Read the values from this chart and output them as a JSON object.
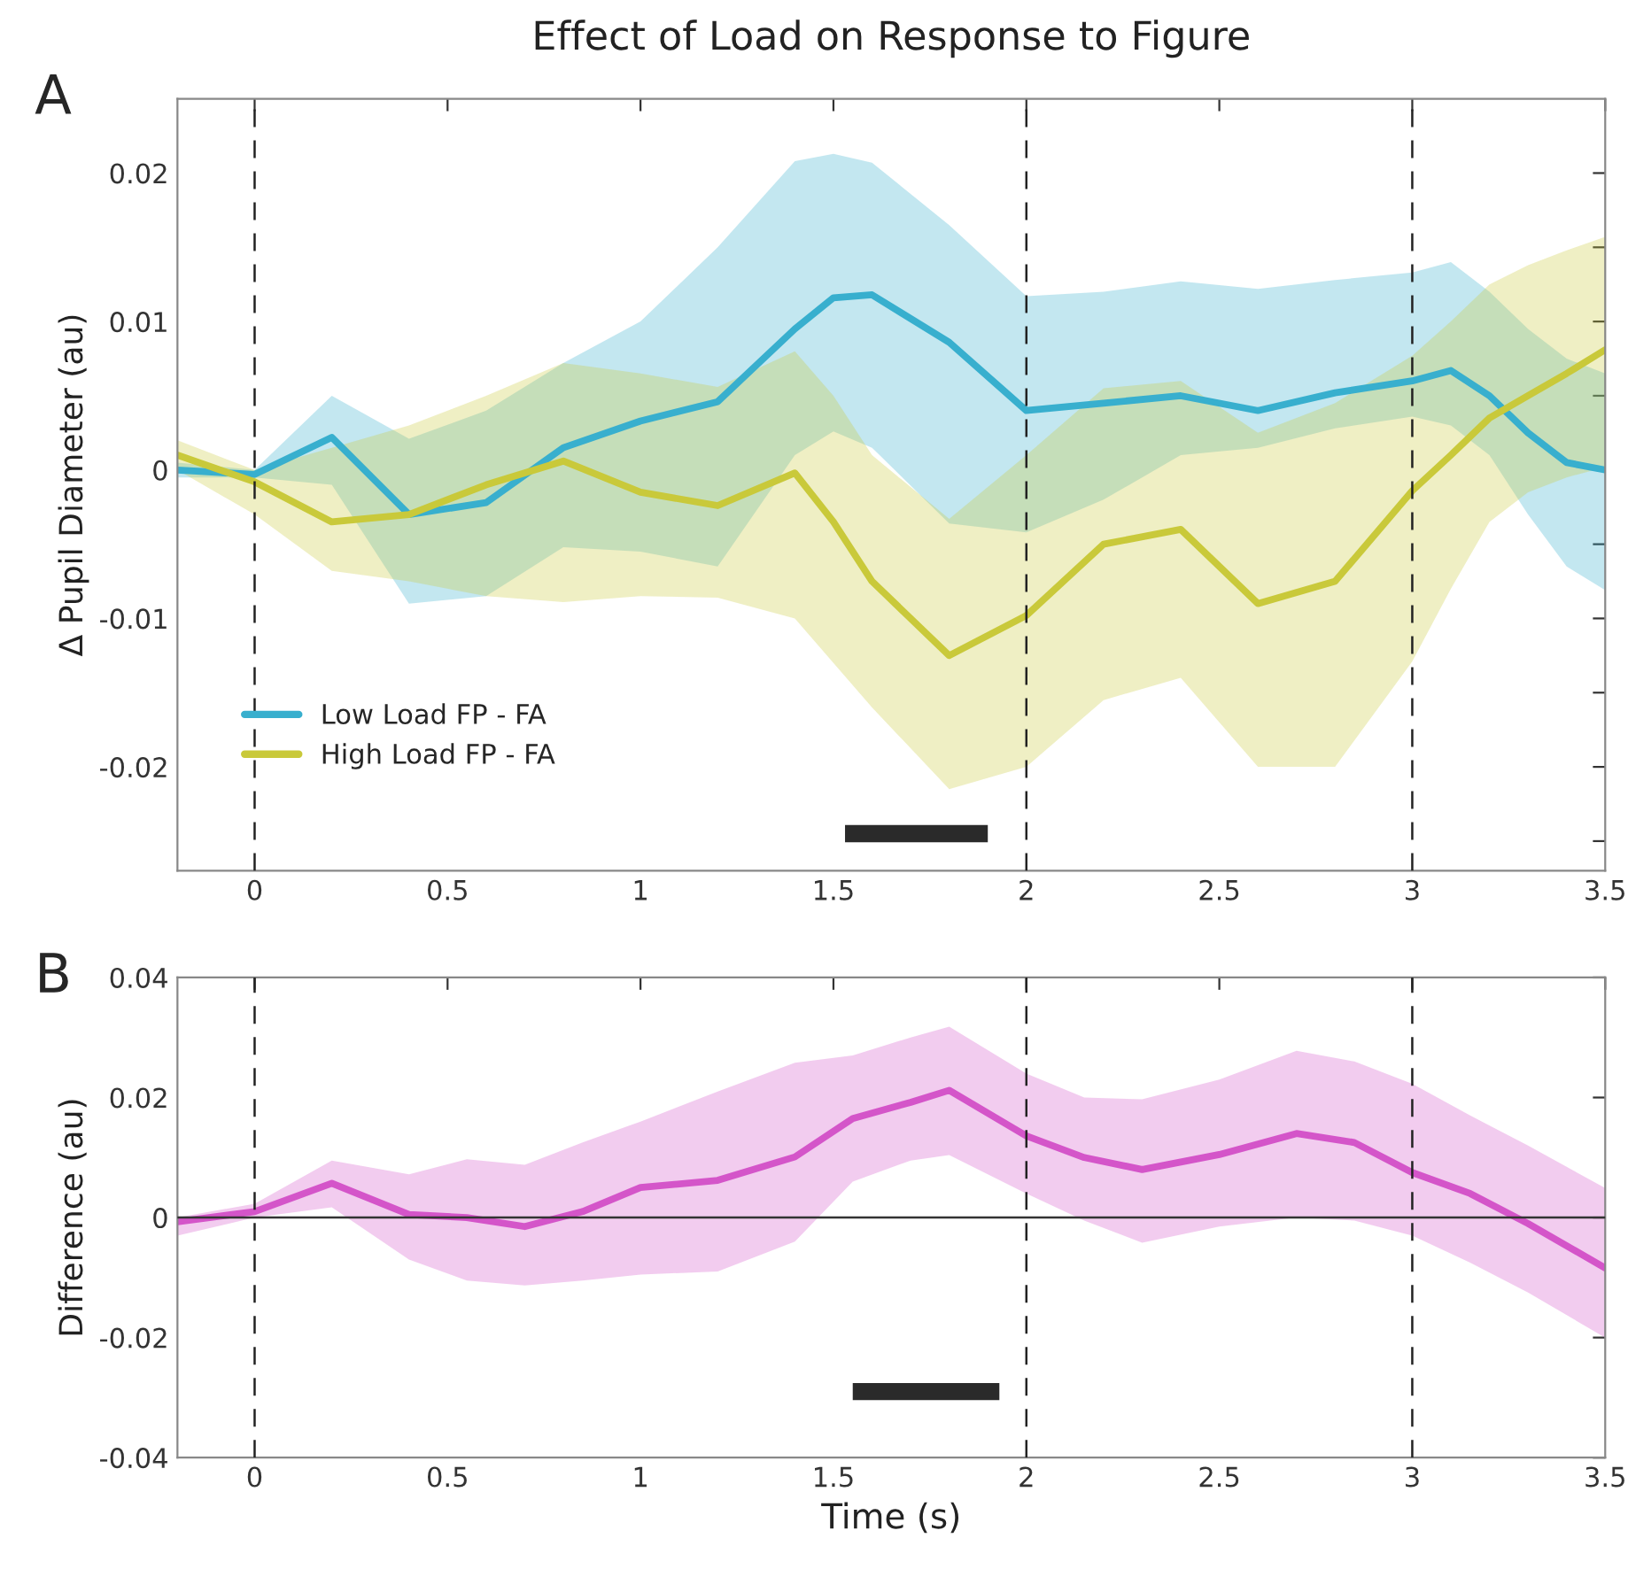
{
  "chart_data": [
    {
      "type": "line",
      "title": "Effect of Load on Response to Figure",
      "ylabel": "Δ Pupil Diameter (au)",
      "annotations": [
        "A"
      ],
      "xlim": [
        -0.2,
        3.5
      ],
      "xticks": [
        0,
        0.5,
        1,
        1.5,
        2,
        2.5,
        3,
        3.5
      ],
      "ylim": [
        -0.027,
        0.025
      ],
      "yticks": [
        {
          "value": -0.025,
          "label": null
        },
        -0.02,
        {
          "value": -0.015,
          "label": null
        },
        -0.01,
        {
          "value": -0.005,
          "label": null
        },
        0,
        {
          "value": 0.005,
          "label": null
        },
        0.01,
        {
          "value": 0.015,
          "label": null
        },
        0.02
      ],
      "grid": false,
      "legend": "bottom left",
      "ref_lines": [
        {
          "axis": "x",
          "value": 0,
          "color": "#222222",
          "line_style": "dashed"
        },
        {
          "axis": "x",
          "value": 2,
          "color": "#222222",
          "line_style": "dashed"
        },
        {
          "axis": "x",
          "value": 3,
          "color": "#222222",
          "line_style": "dashed"
        }
      ],
      "series": [
        {
          "name": "Low Load FP - FA",
          "color": "#38afce",
          "x": [
            -0.2,
            0,
            0.2,
            0.4,
            0.6,
            0.8,
            1.0,
            1.2,
            1.4,
            1.5,
            1.6,
            1.8,
            2.0,
            2.2,
            2.4,
            2.6,
            2.8,
            3.0,
            3.1,
            3.2,
            3.3,
            3.4,
            3.5
          ],
          "values": [
            0.0,
            -0.0003,
            0.0022,
            -0.003,
            -0.0022,
            0.0015,
            0.0033,
            0.0046,
            0.0095,
            0.0116,
            0.0118,
            0.0086,
            0.004,
            0.0045,
            0.005,
            0.004,
            0.0052,
            0.006,
            0.0067,
            0.005,
            0.0025,
            0.0005,
            0.0
          ],
          "upper": [
            0.0005,
            0.0,
            0.005,
            0.0021,
            0.004,
            0.0072,
            0.01,
            0.015,
            0.0208,
            0.0213,
            0.0207,
            0.0165,
            0.0117,
            0.012,
            0.0127,
            0.0122,
            0.0128,
            0.0133,
            0.014,
            0.012,
            0.0095,
            0.0075,
            0.0065
          ],
          "lower": [
            -0.0005,
            -0.0005,
            -0.001,
            -0.009,
            -0.0085,
            -0.0052,
            -0.0055,
            -0.0065,
            0.001,
            0.0026,
            0.0015,
            -0.0036,
            -0.0042,
            -0.002,
            0.001,
            0.0015,
            0.0028,
            0.0036,
            0.003,
            0.001,
            -0.003,
            -0.0065,
            -0.0081
          ]
        },
        {
          "name": "High Load FP - FA",
          "color": "#c9c93a",
          "x": [
            -0.2,
            0,
            0.2,
            0.4,
            0.6,
            0.8,
            1.0,
            1.2,
            1.4,
            1.5,
            1.6,
            1.8,
            2.0,
            2.2,
            2.4,
            2.6,
            2.8,
            3.0,
            3.1,
            3.2,
            3.3,
            3.4,
            3.5
          ],
          "values": [
            0.001,
            -0.0008,
            -0.0035,
            -0.003,
            -0.001,
            0.0006,
            -0.0015,
            -0.0024,
            -0.0002,
            -0.0035,
            -0.0075,
            -0.0125,
            -0.0098,
            -0.005,
            -0.004,
            -0.009,
            -0.0075,
            -0.0014,
            0.001,
            0.0035,
            0.005,
            0.0065,
            0.0081
          ],
          "upper": [
            0.002,
            0.0,
            0.0015,
            0.003,
            0.005,
            0.0072,
            0.0065,
            0.0056,
            0.008,
            0.005,
            0.001,
            -0.0033,
            0.001,
            0.0055,
            0.006,
            0.0025,
            0.0045,
            0.0077,
            0.01,
            0.0125,
            0.0138,
            0.0148,
            0.0157
          ],
          "lower": [
            0.0,
            -0.003,
            -0.0068,
            -0.0075,
            -0.0085,
            -0.0089,
            -0.0085,
            -0.0086,
            -0.01,
            -0.013,
            -0.016,
            -0.0215,
            -0.02,
            -0.0155,
            -0.014,
            -0.02,
            -0.02,
            -0.0129,
            -0.008,
            -0.0035,
            -0.0015,
            -0.0005,
            0.0002
          ]
        },
        {
          "color": "#2a2a2a",
          "x": [
            1.53,
            1.9
          ],
          "values": [
            -0.0245,
            -0.0245
          ]
        }
      ]
    },
    {
      "type": "line",
      "xlabel": "Time (s)",
      "ylabel": "Difference (au)",
      "annotations": [
        "B"
      ],
      "xlim": [
        -0.2,
        3.5
      ],
      "xticks": [
        0,
        0.5,
        1,
        1.5,
        2,
        2.5,
        3,
        3.5
      ],
      "ylim": [
        -0.04,
        0.04
      ],
      "yticks": [
        -0.04,
        -0.02,
        0,
        0.02,
        0.04
      ],
      "grid": false,
      "ref_lines": [
        {
          "axis": "x",
          "value": 0,
          "color": "#222222",
          "line_style": "dashed"
        },
        {
          "axis": "x",
          "value": 2,
          "color": "#222222",
          "line_style": "dashed"
        },
        {
          "axis": "x",
          "value": 3,
          "color": "#222222",
          "line_style": "dashed"
        },
        {
          "axis": "y",
          "value": 0,
          "color": "#333333",
          "line_style": "solid"
        }
      ],
      "series": [
        {
          "color": "#d455c9",
          "x": [
            -0.2,
            0,
            0.2,
            0.4,
            0.55,
            0.7,
            0.85,
            1.0,
            1.2,
            1.4,
            1.55,
            1.7,
            1.8,
            2.0,
            2.15,
            2.3,
            2.5,
            2.7,
            2.85,
            3.0,
            3.15,
            3.3,
            3.5
          ],
          "values": [
            -0.0007,
            0.001,
            0.0057,
            0.0005,
            0.0,
            -0.0015,
            0.001,
            0.005,
            0.0062,
            0.0101,
            0.0165,
            0.0192,
            0.0212,
            0.0136,
            0.01,
            0.008,
            0.0105,
            0.014,
            0.0125,
            0.0075,
            0.004,
            -0.001,
            -0.0084
          ],
          "upper": [
            0.0,
            0.0023,
            0.0095,
            0.0072,
            0.0097,
            0.0088,
            0.0125,
            0.016,
            0.021,
            0.0258,
            0.027,
            0.03,
            0.0318,
            0.024,
            0.02,
            0.0197,
            0.023,
            0.0278,
            0.026,
            0.0223,
            0.017,
            0.012,
            0.0049
          ],
          "lower": [
            -0.003,
            0.0,
            0.0017,
            -0.007,
            -0.0105,
            -0.0113,
            -0.0105,
            -0.0095,
            -0.009,
            -0.004,
            0.006,
            0.0095,
            0.0104,
            0.004,
            -0.0005,
            -0.0042,
            -0.0015,
            0.0,
            -0.0005,
            -0.003,
            -0.0075,
            -0.0125,
            -0.02
          ]
        },
        {
          "color": "#2a2a2a",
          "x": [
            1.55,
            1.93
          ],
          "values": [
            -0.029,
            -0.029
          ]
        }
      ]
    }
  ]
}
